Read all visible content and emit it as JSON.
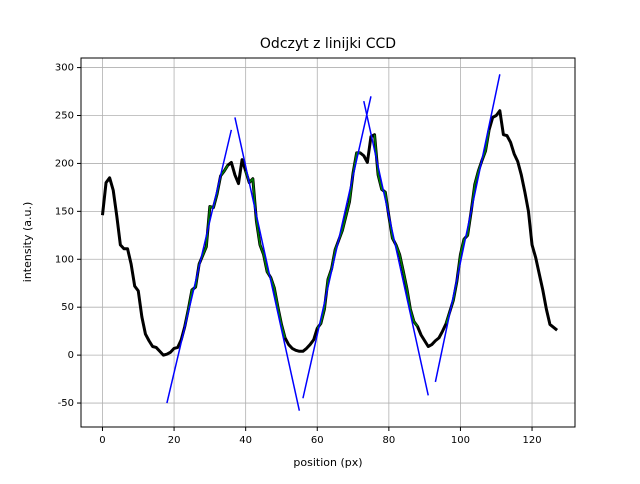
{
  "chart_data": {
    "type": "line",
    "title": "Odczyt z linijki CCD",
    "xlabel": "position (px)",
    "ylabel": "intensity (a.u.)",
    "xlim": [
      -6,
      132
    ],
    "ylim": [
      -75,
      310
    ],
    "xticks": [
      0,
      20,
      40,
      60,
      80,
      100,
      120
    ],
    "yticks": [
      -50,
      0,
      50,
      100,
      150,
      200,
      250,
      300
    ],
    "grid": true,
    "series": [
      {
        "color": "#000000",
        "linewidth": 3,
        "x": [
          0,
          1,
          2,
          3,
          4,
          5,
          6,
          7,
          8,
          9,
          10,
          11,
          12,
          13,
          14,
          15,
          16,
          17,
          18,
          19,
          20,
          21,
          22,
          23,
          24,
          25,
          26,
          27,
          28,
          29,
          30,
          31,
          32,
          33,
          34,
          35,
          36,
          37,
          38,
          39,
          40,
          41,
          42,
          43,
          44,
          45,
          46,
          47,
          48,
          49,
          50,
          51,
          52,
          53,
          54,
          55,
          56,
          57,
          58,
          59,
          60,
          61,
          62,
          63,
          64,
          65,
          66,
          67,
          68,
          69,
          70,
          71,
          72,
          73,
          74,
          75,
          76,
          77,
          78,
          79,
          80,
          81,
          82,
          83,
          84,
          85,
          86,
          87,
          88,
          89,
          90,
          91,
          92,
          93,
          94,
          95,
          96,
          97,
          98,
          99,
          100,
          101,
          102,
          103,
          104,
          105,
          106,
          107,
          108,
          109,
          110,
          111,
          112,
          113,
          114,
          115,
          116,
          117,
          118,
          119,
          120,
          121,
          122,
          123,
          124,
          125,
          126,
          127
        ],
        "values": [
          146,
          180,
          185,
          172,
          145,
          115,
          111,
          111,
          95,
          72,
          67,
          40,
          22,
          15,
          9,
          8,
          4,
          0,
          1,
          3,
          7,
          8,
          16,
          30,
          48,
          68,
          71,
          95,
          104,
          113,
          155,
          154,
          168,
          187,
          192,
          198,
          201,
          188,
          179,
          204,
          192,
          180,
          184,
          140,
          115,
          105,
          87,
          81,
          70,
          50,
          32,
          18,
          11,
          7,
          5,
          4,
          4,
          7,
          11,
          16,
          28,
          33,
          48,
          79,
          90,
          110,
          120,
          130,
          145,
          160,
          190,
          211,
          211,
          208,
          201,
          228,
          230,
          188,
          173,
          170,
          145,
          122,
          115,
          105,
          88,
          70,
          48,
          35,
          30,
          21,
          15,
          9,
          11,
          15,
          18,
          25,
          33,
          45,
          57,
          77,
          105,
          121,
          125,
          150,
          178,
          192,
          203,
          213,
          235,
          248,
          250,
          255,
          230,
          229,
          222,
          210,
          202,
          188,
          170,
          150,
          115,
          102,
          85,
          68,
          48,
          32,
          29,
          26
        ]
      },
      {
        "color": "#008000",
        "linewidth": 1.5,
        "x": [
          23,
          24,
          25,
          26,
          27,
          28,
          29,
          30,
          31,
          32,
          33,
          34,
          35
        ],
        "values": [
          30,
          48,
          68,
          71,
          95,
          104,
          113,
          155,
          154,
          168,
          187,
          192,
          198
        ]
      },
      {
        "color": "#008000",
        "linewidth": 1.5,
        "x": [
          40,
          41,
          42,
          43,
          44,
          45,
          46,
          47,
          48,
          49,
          50,
          51
        ],
        "values": [
          192,
          180,
          184,
          140,
          115,
          105,
          87,
          81,
          70,
          50,
          32,
          18
        ]
      },
      {
        "color": "#008000",
        "linewidth": 1.5,
        "x": [
          60,
          61,
          62,
          63,
          64,
          65,
          66,
          67,
          68,
          69,
          70,
          71,
          72
        ],
        "values": [
          28,
          33,
          48,
          79,
          90,
          110,
          120,
          130,
          145,
          160,
          190,
          211,
          211
        ]
      },
      {
        "color": "#008000",
        "linewidth": 1.5,
        "x": [
          76,
          77,
          78,
          79,
          80,
          81,
          82,
          83,
          84,
          85,
          86,
          87,
          88
        ],
        "values": [
          230,
          188,
          173,
          170,
          145,
          122,
          115,
          105,
          88,
          70,
          48,
          35,
          30
        ]
      },
      {
        "color": "#008000",
        "linewidth": 1.5,
        "x": [
          96,
          97,
          98,
          99,
          100,
          101,
          102,
          103,
          104,
          105,
          106,
          107,
          108
        ],
        "values": [
          33,
          45,
          57,
          77,
          105,
          121,
          125,
          150,
          178,
          192,
          203,
          213,
          235
        ]
      },
      {
        "color": "#0000ff",
        "linewidth": 1.5,
        "x": [
          18,
          36
        ],
        "values": [
          -50,
          235
        ]
      },
      {
        "color": "#0000ff",
        "linewidth": 1.5,
        "x": [
          37,
          55
        ],
        "values": [
          248,
          -58
        ]
      },
      {
        "color": "#0000ff",
        "linewidth": 1.5,
        "x": [
          56,
          75
        ],
        "values": [
          -45,
          270
        ]
      },
      {
        "color": "#0000ff",
        "linewidth": 1.5,
        "x": [
          73,
          91
        ],
        "values": [
          265,
          -42
        ]
      },
      {
        "color": "#0000ff",
        "linewidth": 1.5,
        "x": [
          93,
          111
        ],
        "values": [
          -28,
          293
        ]
      }
    ]
  }
}
